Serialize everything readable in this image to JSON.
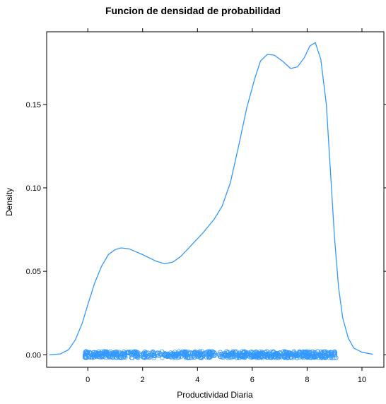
{
  "chart_data": {
    "type": "density",
    "title": "Funcion de densidad de probabilidad",
    "xlabel": "Productividad Diaria",
    "ylabel": "Density",
    "xlim": [
      -1.5,
      10.8
    ],
    "ylim": [
      -0.0075,
      0.1935
    ],
    "x_ticks": [
      0,
      2,
      4,
      6,
      8,
      10
    ],
    "x_tick_labels": [
      "0",
      "2",
      "4",
      "6",
      "8",
      "10"
    ],
    "y_ticks": [
      0.0,
      0.05,
      0.1,
      0.15
    ],
    "y_tick_labels": [
      "0.00",
      "0.05",
      "0.10",
      "0.15"
    ],
    "grid": false,
    "line_color": "#3399ff",
    "density_curve": [
      [
        -1.4,
        0.0
      ],
      [
        -1.0,
        0.0005
      ],
      [
        -0.7,
        0.003
      ],
      [
        -0.45,
        0.009
      ],
      [
        -0.2,
        0.019
      ],
      [
        0.0,
        0.03
      ],
      [
        0.25,
        0.043
      ],
      [
        0.5,
        0.053
      ],
      [
        0.75,
        0.06
      ],
      [
        1.0,
        0.063
      ],
      [
        1.2,
        0.064
      ],
      [
        1.5,
        0.0635
      ],
      [
        2.0,
        0.06
      ],
      [
        2.5,
        0.056
      ],
      [
        2.8,
        0.0545
      ],
      [
        3.1,
        0.0555
      ],
      [
        3.4,
        0.059
      ],
      [
        3.8,
        0.066
      ],
      [
        4.2,
        0.073
      ],
      [
        4.6,
        0.081
      ],
      [
        4.9,
        0.089
      ],
      [
        5.2,
        0.103
      ],
      [
        5.5,
        0.125
      ],
      [
        5.8,
        0.148
      ],
      [
        6.1,
        0.166
      ],
      [
        6.3,
        0.176
      ],
      [
        6.55,
        0.18
      ],
      [
        6.8,
        0.1795
      ],
      [
        7.1,
        0.176
      ],
      [
        7.4,
        0.1715
      ],
      [
        7.65,
        0.1725
      ],
      [
        7.9,
        0.178
      ],
      [
        8.1,
        0.185
      ],
      [
        8.3,
        0.187
      ],
      [
        8.5,
        0.177
      ],
      [
        8.7,
        0.15
      ],
      [
        8.85,
        0.11
      ],
      [
        9.0,
        0.07
      ],
      [
        9.15,
        0.04
      ],
      [
        9.3,
        0.022
      ],
      [
        9.5,
        0.01
      ],
      [
        9.7,
        0.004
      ],
      [
        10.0,
        0.0015
      ],
      [
        10.4,
        0.0003
      ]
    ],
    "rug_points": {
      "range": [
        -0.1,
        9.05
      ],
      "y": 0.0,
      "marker": "open-circle",
      "color": "#3399ff"
    }
  }
}
